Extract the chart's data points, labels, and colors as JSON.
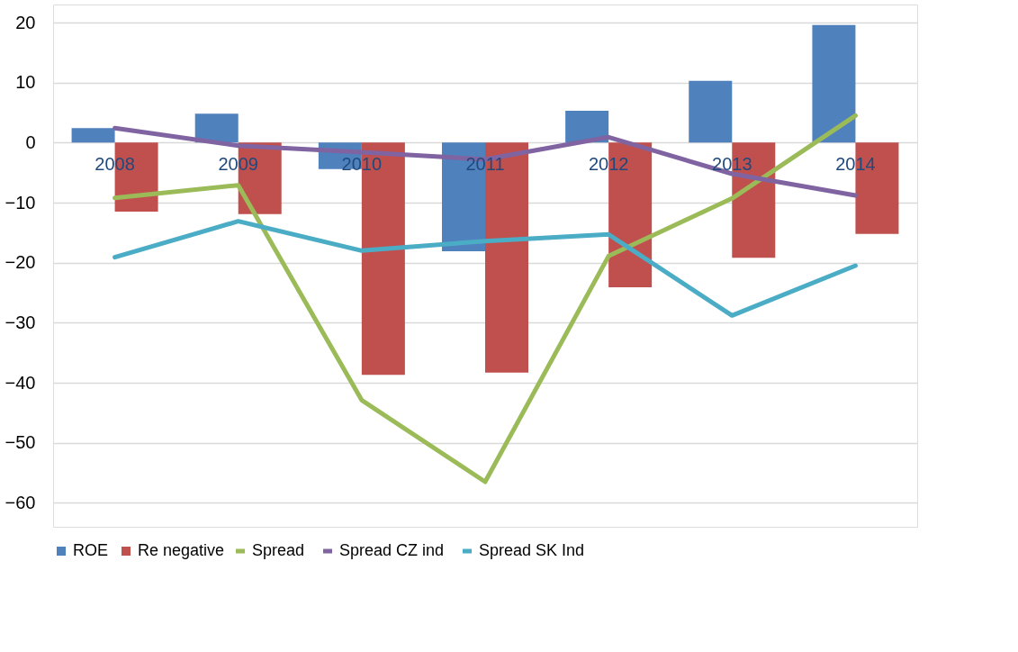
{
  "chart_data": {
    "type": "bar",
    "categories": [
      "2008",
      "2009",
      "2010",
      "2011",
      "2012",
      "2013",
      "2014"
    ],
    "ylim": [
      -64,
      23
    ],
    "yticks": [
      -60,
      -50,
      -40,
      -30,
      -20,
      -10,
      0,
      10,
      20
    ],
    "grid": "y",
    "legend": "bottom",
    "series": [
      {
        "name": "ROE",
        "color": "#4f81bd",
        "values": [
          2.4,
          4.8,
          -4.4,
          -18.1,
          5.3,
          10.3,
          19.6
        ]
      },
      {
        "name": "Re negative",
        "color": "#c0504d",
        "values": [
          -11.5,
          -11.9,
          -38.7,
          -38.3,
          -24.1,
          -19.2,
          -15.2
        ]
      },
      {
        "name": "Spread",
        "type": "line",
        "color": "#9bbb59",
        "values": [
          -9.2,
          -7.1,
          -42.9,
          -56.5,
          -18.9,
          -9.3,
          4.5
        ]
      },
      {
        "name": "Spread CZ ind",
        "type": "line",
        "color": "#8064a2",
        "values": [
          2.4,
          -0.5,
          -1.6,
          -2.8,
          0.9,
          -5.2,
          -8.8
        ]
      },
      {
        "name": "Spread SK Ind",
        "type": "line",
        "color": "#4bacc6",
        "values": [
          -19.1,
          -13.1,
          -18.0,
          -16.4,
          -15.3,
          -28.8,
          -20.5
        ]
      }
    ]
  }
}
